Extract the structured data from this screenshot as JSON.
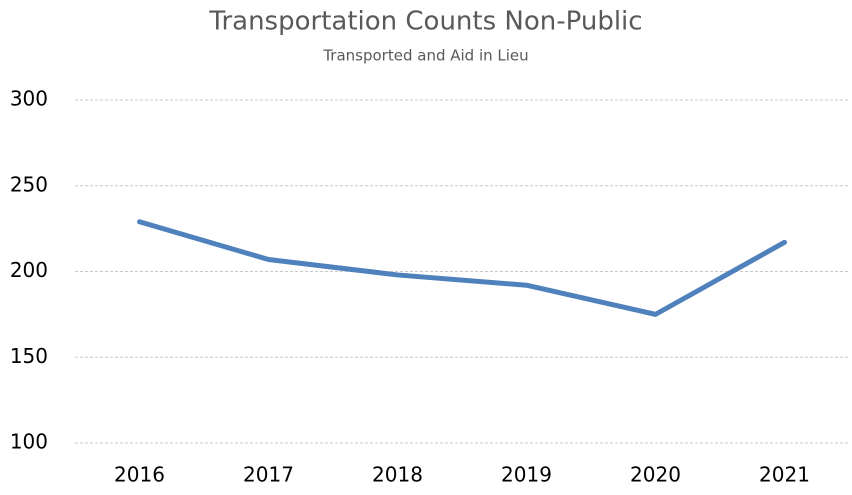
{
  "chart_data": {
    "type": "line",
    "title": "Transportation Counts Non-Public",
    "subtitle": "Transported and Aid in Lieu",
    "categories": [
      "2016",
      "2017",
      "2018",
      "2019",
      "2020",
      "2021"
    ],
    "series": [
      {
        "name": "Non-Public",
        "color": "#4f81bd",
        "values": [
          229,
          207,
          198,
          192,
          175,
          217
        ]
      }
    ],
    "ylim": [
      100,
      300
    ],
    "yticks": [
      100,
      150,
      200,
      250,
      300
    ],
    "grid": true,
    "legend": false
  }
}
